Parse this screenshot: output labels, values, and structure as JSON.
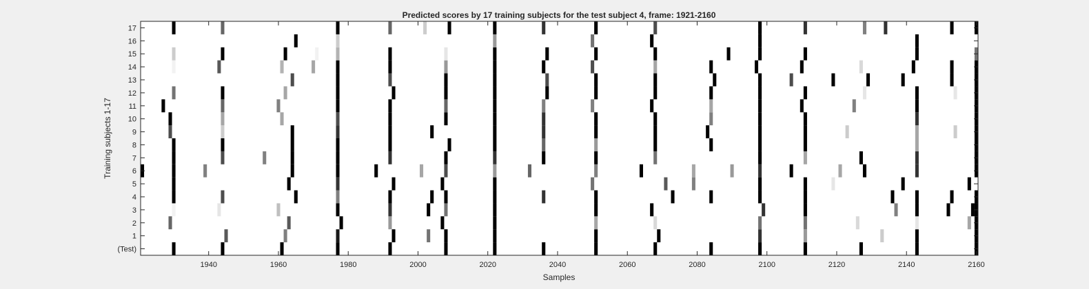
{
  "chart_data": {
    "type": "heatmap",
    "title": "Predicted scores by 17 training subjects for the test subject 4, frame: 1921-2160",
    "xlabel": "Samples",
    "ylabel": "Training subjects 1-17",
    "xlim": [
      1921,
      2160
    ],
    "x_ticks": [
      1940,
      1960,
      1980,
      2000,
      2020,
      2040,
      2060,
      2080,
      2100,
      2120,
      2140,
      2160
    ],
    "rows": [
      "(Test)",
      "1",
      "2",
      "3",
      "4",
      "5",
      "6",
      "7",
      "8",
      "9",
      "10",
      "11",
      "12",
      "13",
      "14",
      "15",
      "16",
      "17"
    ],
    "colormap": "gray (1 = black, 0 = white)",
    "grid": false,
    "marks": [
      {
        "row": "(Test)",
        "points": [
          [
            1930,
            1
          ],
          [
            1944,
            1
          ],
          [
            1961,
            1
          ],
          [
            1977,
            1
          ],
          [
            1992,
            1
          ],
          [
            2008,
            1
          ],
          [
            2022,
            1
          ],
          [
            2036,
            1
          ],
          [
            2051,
            1
          ],
          [
            2068,
            1
          ],
          [
            2084,
            1
          ],
          [
            2098,
            1
          ],
          [
            2111,
            1
          ],
          [
            2127,
            1
          ],
          [
            2143,
            1
          ],
          [
            2160,
            1
          ]
        ]
      },
      {
        "row": "1",
        "points": [
          [
            1945,
            0.65
          ],
          [
            1962,
            0.5
          ],
          [
            1977,
            0.9
          ],
          [
            1993,
            1
          ],
          [
            2003,
            0.55
          ],
          [
            2008,
            1
          ],
          [
            2022,
            1
          ],
          [
            2051,
            1
          ],
          [
            2069,
            1
          ],
          [
            2098,
            0.8
          ],
          [
            2111,
            0.4
          ],
          [
            2133,
            0.2
          ],
          [
            2143,
            1
          ],
          [
            2160,
            1
          ]
        ]
      },
      {
        "row": "2",
        "points": [
          [
            1929,
            0.6
          ],
          [
            1963,
            0.65
          ],
          [
            1978,
            1
          ],
          [
            1992,
            0.4
          ],
          [
            2007,
            1
          ],
          [
            2022,
            1
          ],
          [
            2051,
            0.35
          ],
          [
            2068,
            0.15
          ],
          [
            2098,
            0.55
          ],
          [
            2111,
            0.55
          ],
          [
            2126,
            0.15
          ],
          [
            2143,
            0.1
          ],
          [
            2158,
            0.35
          ],
          [
            2160,
            1
          ]
        ]
      },
      {
        "row": "3",
        "points": [
          [
            1930,
            0.05
          ],
          [
            1943,
            0.1
          ],
          [
            1960,
            0.25
          ],
          [
            1977,
            1
          ],
          [
            1992,
            0.8
          ],
          [
            2003,
            1
          ],
          [
            2008,
            0.55
          ],
          [
            2022,
            1
          ],
          [
            2051,
            1
          ],
          [
            2067,
            1
          ],
          [
            2099,
            0.8
          ],
          [
            2111,
            1
          ],
          [
            2137,
            0.5
          ],
          [
            2143,
            1
          ],
          [
            2152,
            1
          ],
          [
            2159,
            1
          ],
          [
            2160,
            1
          ]
        ]
      },
      {
        "row": "4",
        "points": [
          [
            1930,
            1
          ],
          [
            1944,
            0.7
          ],
          [
            1965,
            1
          ],
          [
            1977,
            0.5
          ],
          [
            1992,
            1
          ],
          [
            2004,
            1
          ],
          [
            2008,
            1
          ],
          [
            2022,
            1
          ],
          [
            2036,
            0.8
          ],
          [
            2051,
            1
          ],
          [
            2073,
            1
          ],
          [
            2084,
            1
          ],
          [
            2098,
            1
          ],
          [
            2111,
            1
          ],
          [
            2136,
            1
          ],
          [
            2143,
            1
          ],
          [
            2153,
            1
          ],
          [
            2160,
            1
          ]
        ]
      },
      {
        "row": "5",
        "points": [
          [
            1930,
            1
          ],
          [
            1963,
            1
          ],
          [
            1977,
            0.8
          ],
          [
            1993,
            1
          ],
          [
            2007,
            1
          ],
          [
            2022,
            1
          ],
          [
            2050,
            0.55
          ],
          [
            2071,
            0.65
          ],
          [
            2079,
            0.5
          ],
          [
            2098,
            1
          ],
          [
            2111,
            1
          ],
          [
            2119,
            0.1
          ],
          [
            2139,
            1
          ],
          [
            2158,
            1
          ]
        ]
      },
      {
        "row": "6",
        "points": [
          [
            1921,
            1
          ],
          [
            1930,
            1
          ],
          [
            1939,
            0.5
          ],
          [
            1964,
            1
          ],
          [
            1977,
            1
          ],
          [
            1988,
            1
          ],
          [
            2001,
            0.35
          ],
          [
            2008,
            0.7
          ],
          [
            2022,
            0.4
          ],
          [
            2032,
            0.6
          ],
          [
            2051,
            0.5
          ],
          [
            2064,
            1
          ],
          [
            2079,
            0.35
          ],
          [
            2090,
            0.4
          ],
          [
            2098,
            0.8
          ],
          [
            2107,
            1
          ],
          [
            2121,
            0.35
          ],
          [
            2128,
            1
          ],
          [
            2143,
            0.8
          ],
          [
            2160,
            1
          ]
        ]
      },
      {
        "row": "7",
        "points": [
          [
            1930,
            1
          ],
          [
            1944,
            0.7
          ],
          [
            1956,
            0.5
          ],
          [
            1964,
            1
          ],
          [
            1977,
            1
          ],
          [
            1992,
            0.8
          ],
          [
            2008,
            1
          ],
          [
            2022,
            0.8
          ],
          [
            2036,
            1
          ],
          [
            2051,
            1
          ],
          [
            2068,
            0.55
          ],
          [
            2098,
            1
          ],
          [
            2111,
            0.35
          ],
          [
            2127,
            1
          ],
          [
            2143,
            0.8
          ],
          [
            2160,
            1
          ]
        ]
      },
      {
        "row": "8",
        "points": [
          [
            1930,
            1
          ],
          [
            1944,
            1
          ],
          [
            1964,
            1
          ],
          [
            1977,
            1
          ],
          [
            1992,
            1
          ],
          [
            2009,
            1
          ],
          [
            2022,
            1
          ],
          [
            2036,
            0.6
          ],
          [
            2051,
            0.4
          ],
          [
            2068,
            1
          ],
          [
            2084,
            1
          ],
          [
            2098,
            1
          ],
          [
            2111,
            1
          ],
          [
            2143,
            0.35
          ],
          [
            2160,
            1
          ]
        ]
      },
      {
        "row": "9",
        "points": [
          [
            1929,
            0.7
          ],
          [
            1944,
            0.2
          ],
          [
            1964,
            1
          ],
          [
            1977,
            0.8
          ],
          [
            1992,
            1
          ],
          [
            2004,
            1
          ],
          [
            2022,
            1
          ],
          [
            2036,
            0.8
          ],
          [
            2051,
            1
          ],
          [
            2068,
            1
          ],
          [
            2083,
            1
          ],
          [
            2098,
            1
          ],
          [
            2111,
            1
          ],
          [
            2123,
            0.2
          ],
          [
            2143,
            0.35
          ],
          [
            2154,
            0.2
          ],
          [
            2160,
            1
          ]
        ]
      },
      {
        "row": "10",
        "points": [
          [
            1929,
            1
          ],
          [
            1944,
            0.35
          ],
          [
            1961,
            0.35
          ],
          [
            1977,
            0.7
          ],
          [
            1992,
            1
          ],
          [
            2008,
            1
          ],
          [
            2022,
            1
          ],
          [
            2036,
            0.8
          ],
          [
            2051,
            1
          ],
          [
            2068,
            1
          ],
          [
            2084,
            0.5
          ],
          [
            2098,
            1
          ],
          [
            2111,
            1
          ],
          [
            2143,
            0.8
          ],
          [
            2160,
            1
          ]
        ]
      },
      {
        "row": "11",
        "points": [
          [
            1927,
            1
          ],
          [
            1944,
            0.6
          ],
          [
            1960,
            0.5
          ],
          [
            1977,
            1
          ],
          [
            1992,
            1
          ],
          [
            2008,
            0.6
          ],
          [
            2022,
            1
          ],
          [
            2036,
            0.5
          ],
          [
            2050,
            0.5
          ],
          [
            2067,
            1
          ],
          [
            2084,
            0.35
          ],
          [
            2098,
            1
          ],
          [
            2110,
            1
          ],
          [
            2125,
            0.5
          ],
          [
            2143,
            1
          ],
          [
            2160,
            1
          ]
        ]
      },
      {
        "row": "12",
        "points": [
          [
            1930,
            0.55
          ],
          [
            1944,
            1
          ],
          [
            1962,
            0.35
          ],
          [
            1977,
            1
          ],
          [
            1993,
            1
          ],
          [
            2008,
            1
          ],
          [
            2022,
            1
          ],
          [
            2037,
            1
          ],
          [
            2051,
            1
          ],
          [
            2068,
            1
          ],
          [
            2084,
            1
          ],
          [
            2098,
            1
          ],
          [
            2111,
            1
          ],
          [
            2128,
            0.1
          ],
          [
            2143,
            1
          ],
          [
            2154,
            0.1
          ],
          [
            2160,
            1
          ]
        ]
      },
      {
        "row": "13",
        "points": [
          [
            1964,
            0.7
          ],
          [
            1977,
            1
          ],
          [
            1992,
            0.7
          ],
          [
            2008,
            1
          ],
          [
            2022,
            1
          ],
          [
            2037,
            0.7
          ],
          [
            2051,
            1
          ],
          [
            2068,
            1
          ],
          [
            2085,
            1
          ],
          [
            2098,
            1
          ],
          [
            2107,
            0.7
          ],
          [
            2119,
            1
          ],
          [
            2129,
            1
          ],
          [
            2139,
            1
          ],
          [
            2153,
            1
          ],
          [
            2160,
            1
          ]
        ]
      },
      {
        "row": "14",
        "points": [
          [
            1930,
            0.05
          ],
          [
            1943,
            0.65
          ],
          [
            1961,
            0.3
          ],
          [
            1970,
            0.35
          ],
          [
            1977,
            1
          ],
          [
            1992,
            1
          ],
          [
            2008,
            0.4
          ],
          [
            2022,
            1
          ],
          [
            2036,
            1
          ],
          [
            2050,
            0.7
          ],
          [
            2068,
            0.35
          ],
          [
            2084,
            1
          ],
          [
            2097,
            1
          ],
          [
            2110,
            1
          ],
          [
            2127,
            0.15
          ],
          [
            2142,
            1
          ],
          [
            2153,
            1
          ],
          [
            2160,
            1
          ]
        ]
      },
      {
        "row": "15",
        "points": [
          [
            1930,
            0.2
          ],
          [
            1944,
            1
          ],
          [
            1962,
            1
          ],
          [
            1971,
            0.05
          ],
          [
            1977,
            0.3
          ],
          [
            1992,
            1
          ],
          [
            2008,
            0.1
          ],
          [
            2022,
            1
          ],
          [
            2037,
            1
          ],
          [
            2051,
            1
          ],
          [
            2068,
            1
          ],
          [
            2089,
            1
          ],
          [
            2098,
            1
          ],
          [
            2111,
            1
          ],
          [
            2143,
            1
          ],
          [
            2160,
            0.55
          ]
        ]
      },
      {
        "row": "16",
        "points": [
          [
            1965,
            1
          ],
          [
            1977,
            0.2
          ],
          [
            2022,
            0.4
          ],
          [
            2050,
            0.55
          ],
          [
            2067,
            1
          ],
          [
            2098,
            1
          ],
          [
            2143,
            1
          ]
        ]
      },
      {
        "row": "17",
        "points": [
          [
            1930,
            1
          ],
          [
            1944,
            0.6
          ],
          [
            1977,
            1
          ],
          [
            1992,
            0.6
          ],
          [
            2002,
            0.2
          ],
          [
            2009,
            1
          ],
          [
            2022,
            1
          ],
          [
            2036,
            0.8
          ],
          [
            2051,
            1
          ],
          [
            2068,
            0.7
          ],
          [
            2098,
            1
          ],
          [
            2111,
            0.8
          ],
          [
            2128,
            0.5
          ],
          [
            2134,
            0.8
          ],
          [
            2153,
            1
          ],
          [
            2160,
            1
          ]
        ]
      }
    ]
  }
}
